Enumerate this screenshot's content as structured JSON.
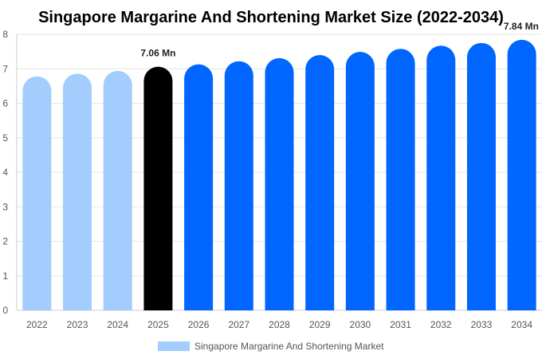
{
  "chart_data": {
    "type": "bar",
    "title": "Singapore Margarine And Shortening Market Size (2022-2034)",
    "xlabel": "",
    "ylabel": "",
    "categories": [
      "2022",
      "2023",
      "2024",
      "2025",
      "2026",
      "2027",
      "2028",
      "2029",
      "2030",
      "2031",
      "2032",
      "2033",
      "2034"
    ],
    "series": [
      {
        "name": "Singapore Margarine And Shortening Market",
        "values": [
          6.78,
          6.86,
          6.94,
          7.06,
          7.13,
          7.22,
          7.31,
          7.4,
          7.49,
          7.58,
          7.67,
          7.75,
          7.84
        ]
      }
    ],
    "ylim": [
      0,
      8
    ],
    "yticks": [
      0,
      1,
      2,
      3,
      4,
      5,
      6,
      7,
      8
    ],
    "data_labels": [
      {
        "index": 3,
        "text": "7.06 Mn"
      },
      {
        "index": 12,
        "text": "7.84 Mn"
      }
    ],
    "colors": {
      "historical": "#a3cdfc",
      "current": "#000000",
      "forecast": "#0066ff",
      "grid": "#e6e6e6",
      "axis": "#cccccc"
    },
    "grid": true,
    "legend_position": "bottom-center"
  }
}
